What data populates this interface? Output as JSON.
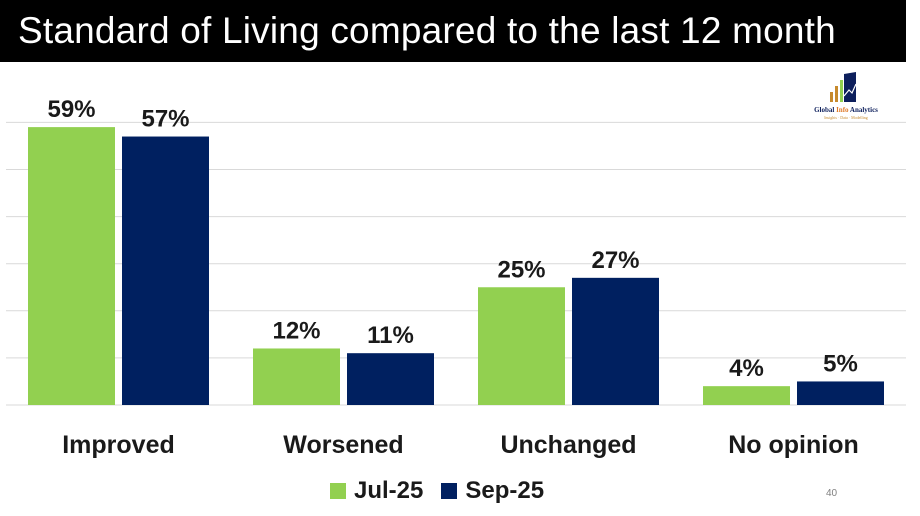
{
  "title": "Standard of Living compared to the last 12 month",
  "logo": {
    "name_main": "Global ",
    "name_accent": "Info",
    "name_end": " Analytics",
    "tagline": "Insights · Data · Modelling"
  },
  "page_number": "40",
  "colors": {
    "series1": "#92d050",
    "series2": "#002060",
    "grid": "#d9d9d9"
  },
  "chart_data": {
    "type": "bar",
    "categories": [
      "Improved",
      "Worsened",
      "Unchanged",
      "No opinion"
    ],
    "series": [
      {
        "name": "Jul-25",
        "values": [
          59,
          12,
          25,
          4
        ],
        "labels": [
          "59%",
          "12%",
          "25%",
          "4%"
        ]
      },
      {
        "name": "Sep-25",
        "values": [
          57,
          11,
          27,
          5
        ],
        "labels": [
          "57%",
          "11%",
          "27%",
          "5%"
        ]
      }
    ],
    "ylim": [
      0,
      60
    ],
    "grid": true,
    "legend_position": "bottom"
  }
}
